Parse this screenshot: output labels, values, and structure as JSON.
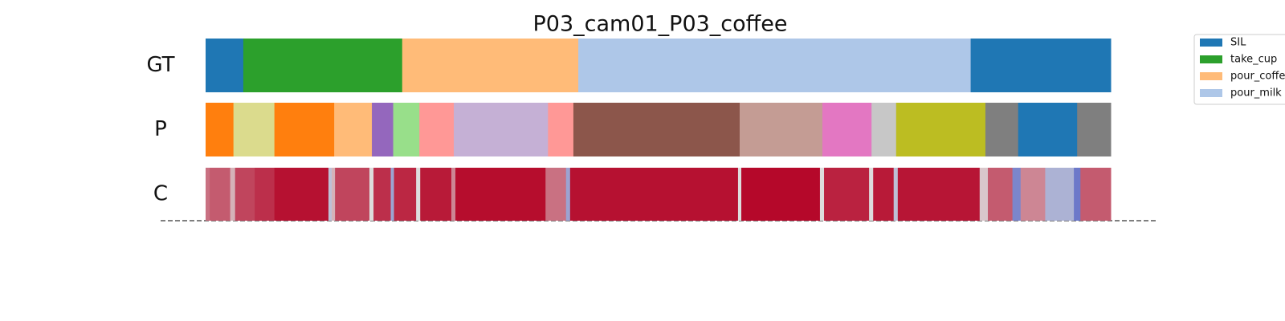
{
  "chart_data": {
    "type": "segmentation",
    "title": "P03_cam01_P03_coffee",
    "rows": [
      "GT",
      "P",
      "C"
    ],
    "xlim": [
      0,
      1105
    ],
    "legend": [
      {
        "name": "SIL",
        "color": "#1f77b4"
      },
      {
        "name": "take_cup",
        "color": "#2ca02c"
      },
      {
        "name": "pour_coffee",
        "color": "#ffbb78"
      },
      {
        "name": "pour_milk",
        "color": "#aec7e8"
      }
    ],
    "ground_truth": [
      {
        "start": 0,
        "end": 46,
        "class": 0
      },
      {
        "start": 46,
        "end": 240,
        "class": 1
      },
      {
        "start": 240,
        "end": 455,
        "class": 2
      },
      {
        "start": 455,
        "end": 934,
        "class": 3
      },
      {
        "start": 934,
        "end": 1105,
        "class": 0
      }
    ],
    "prediction": [
      {
        "start": 0,
        "end": 34,
        "color": "#ff7f0e"
      },
      {
        "start": 34,
        "end": 84,
        "color": "#dbdb8d"
      },
      {
        "start": 84,
        "end": 157,
        "color": "#ff7f0e"
      },
      {
        "start": 157,
        "end": 203,
        "color": "#ffbb78"
      },
      {
        "start": 203,
        "end": 229,
        "color": "#9467bd"
      },
      {
        "start": 229,
        "end": 261,
        "color": "#98df8a"
      },
      {
        "start": 261,
        "end": 303,
        "color": "#ff9896"
      },
      {
        "start": 303,
        "end": 418,
        "color": "#c5b0d5"
      },
      {
        "start": 418,
        "end": 449,
        "color": "#ff9896"
      },
      {
        "start": 449,
        "end": 652,
        "color": "#8c564b"
      },
      {
        "start": 652,
        "end": 753,
        "color": "#c49c94"
      },
      {
        "start": 753,
        "end": 813,
        "color": "#e377c2"
      },
      {
        "start": 813,
        "end": 843,
        "color": "#c7c7c7"
      },
      {
        "start": 843,
        "end": 952,
        "color": "#bcbd22"
      },
      {
        "start": 952,
        "end": 992,
        "color": "#7f7f7f"
      },
      {
        "start": 992,
        "end": 1064,
        "color": "#1f77b4"
      },
      {
        "start": 1064,
        "end": 1105,
        "color": "#7f7f7f"
      }
    ],
    "colormap": [
      "#3b4cc0",
      "#dddddd",
      "#b40426"
    ],
    "confidence": [
      {
        "start": 0,
        "end": 5,
        "value": 0.75
      },
      {
        "start": 5,
        "end": 30,
        "value": 0.8
      },
      {
        "start": 30,
        "end": 36,
        "value": 0.6
      },
      {
        "start": 36,
        "end": 60,
        "value": 0.85
      },
      {
        "start": 60,
        "end": 84,
        "value": 0.9
      },
      {
        "start": 84,
        "end": 150,
        "value": 0.97
      },
      {
        "start": 150,
        "end": 154,
        "value": 0.4
      },
      {
        "start": 154,
        "end": 158,
        "value": 0.6
      },
      {
        "start": 158,
        "end": 200,
        "value": 0.85
      },
      {
        "start": 200,
        "end": 205,
        "value": 0.5
      },
      {
        "start": 205,
        "end": 226,
        "value": 0.9
      },
      {
        "start": 226,
        "end": 230,
        "value": 0.3
      },
      {
        "start": 230,
        "end": 257,
        "value": 0.92
      },
      {
        "start": 257,
        "end": 262,
        "value": 0.5
      },
      {
        "start": 262,
        "end": 300,
        "value": 0.95
      },
      {
        "start": 300,
        "end": 305,
        "value": 0.7
      },
      {
        "start": 305,
        "end": 415,
        "value": 0.98
      },
      {
        "start": 415,
        "end": 440,
        "value": 0.75
      },
      {
        "start": 440,
        "end": 445,
        "value": 0.3
      },
      {
        "start": 445,
        "end": 650,
        "value": 0.97
      },
      {
        "start": 650,
        "end": 654,
        "value": 0.5
      },
      {
        "start": 654,
        "end": 750,
        "value": 0.99
      },
      {
        "start": 750,
        "end": 755,
        "value": 0.5
      },
      {
        "start": 755,
        "end": 810,
        "value": 0.93
      },
      {
        "start": 810,
        "end": 815,
        "value": 0.5
      },
      {
        "start": 815,
        "end": 840,
        "value": 0.95
      },
      {
        "start": 840,
        "end": 845,
        "value": 0.4
      },
      {
        "start": 845,
        "end": 945,
        "value": 0.96
      },
      {
        "start": 945,
        "end": 955,
        "value": 0.55
      },
      {
        "start": 955,
        "end": 985,
        "value": 0.8
      },
      {
        "start": 985,
        "end": 995,
        "value": 0.2
      },
      {
        "start": 995,
        "end": 1025,
        "value": 0.7
      },
      {
        "start": 1025,
        "end": 1060,
        "value": 0.35
      },
      {
        "start": 1060,
        "end": 1068,
        "value": 0.15
      },
      {
        "start": 1068,
        "end": 1105,
        "value": 0.8
      }
    ]
  }
}
